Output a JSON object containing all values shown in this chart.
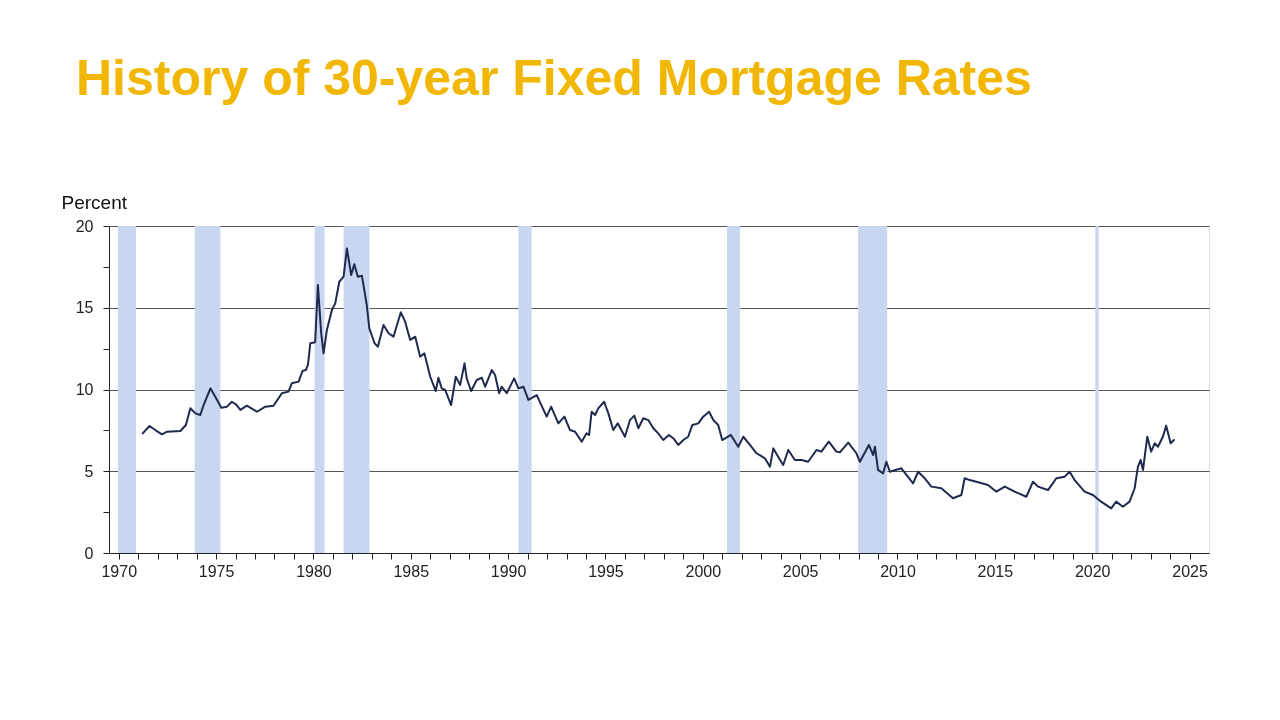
{
  "chart_data": {
    "type": "line",
    "title": "History of 30-year Fixed Mortgage Rates",
    "ylabel": "Percent",
    "xlim": [
      1969.5,
      2026
    ],
    "ylim": [
      0,
      20
    ],
    "xticks": [
      1970,
      {
        "value": 1971,
        "label": null
      },
      {
        "value": 1972,
        "label": null
      },
      {
        "value": 1973,
        "label": null
      },
      {
        "value": 1974,
        "label": null
      },
      1975,
      {
        "value": 1976,
        "label": null
      },
      {
        "value": 1977,
        "label": null
      },
      {
        "value": 1978,
        "label": null
      },
      {
        "value": 1979,
        "label": null
      },
      1980,
      {
        "value": 1981,
        "label": null
      },
      {
        "value": 1982,
        "label": null
      },
      {
        "value": 1983,
        "label": null
      },
      {
        "value": 1984,
        "label": null
      },
      1985,
      {
        "value": 1986,
        "label": null
      },
      {
        "value": 1987,
        "label": null
      },
      {
        "value": 1988,
        "label": null
      },
      {
        "value": 1989,
        "label": null
      },
      1990,
      {
        "value": 1991,
        "label": null
      },
      {
        "value": 1992,
        "label": null
      },
      {
        "value": 1993,
        "label": null
      },
      {
        "value": 1994,
        "label": null
      },
      1995,
      {
        "value": 1996,
        "label": null
      },
      {
        "value": 1997,
        "label": null
      },
      {
        "value": 1998,
        "label": null
      },
      {
        "value": 1999,
        "label": null
      },
      2000,
      {
        "value": 2001,
        "label": null
      },
      {
        "value": 2002,
        "label": null
      },
      {
        "value": 2003,
        "label": null
      },
      {
        "value": 2004,
        "label": null
      },
      2005,
      {
        "value": 2006,
        "label": null
      },
      {
        "value": 2007,
        "label": null
      },
      {
        "value": 2008,
        "label": null
      },
      {
        "value": 2009,
        "label": null
      },
      2010,
      {
        "value": 2011,
        "label": null
      },
      {
        "value": 2012,
        "label": null
      },
      {
        "value": 2013,
        "label": null
      },
      {
        "value": 2014,
        "label": null
      },
      2015,
      {
        "value": 2016,
        "label": null
      },
      {
        "value": 2017,
        "label": null
      },
      {
        "value": 2018,
        "label": null
      },
      {
        "value": 2019,
        "label": null
      },
      2020,
      {
        "value": 2021,
        "label": null
      },
      {
        "value": 2022,
        "label": null
      },
      {
        "value": 2023,
        "label": null
      },
      {
        "value": 2024,
        "label": null
      },
      2025
    ],
    "yticks": [
      0,
      {
        "value": 2.5,
        "label": null
      },
      5,
      {
        "value": 7.5,
        "label": null
      },
      10,
      {
        "value": 12.5,
        "label": null
      },
      15,
      {
        "value": 17.5,
        "label": null
      },
      20
    ],
    "grid": "y",
    "line_style": "solid",
    "marker": "none",
    "bands": [
      {
        "axis": "x",
        "from": 1969.96,
        "to": 1970.89,
        "color": "#c9d6ef"
      },
      {
        "axis": "x",
        "from": 1973.9,
        "to": 1975.22,
        "color": "#c9d6ef"
      },
      {
        "axis": "x",
        "from": 1980.06,
        "to": 1980.57,
        "color": "#c9d6ef"
      },
      {
        "axis": "x",
        "from": 1981.55,
        "to": 1982.88,
        "color": "#c9d6ef"
      },
      {
        "axis": "x",
        "from": 1990.53,
        "to": 1991.21,
        "color": "#c9d6ef"
      },
      {
        "axis": "x",
        "from": 2001.24,
        "to": 2001.91,
        "color": "#c9d6ef"
      },
      {
        "axis": "x",
        "from": 2007.98,
        "to": 2009.47,
        "color": "#c9d6ef"
      },
      {
        "axis": "x",
        "from": 2020.16,
        "to": 2020.33,
        "color": "#c9d6ef"
      }
    ],
    "series": [
      {
        "color": "#1f2a4e",
        "x": [
          1971.23,
          1971.58,
          1971.88,
          1972.22,
          1972.48,
          1973.17,
          1973.45,
          1973.68,
          1973.94,
          1974.19,
          1974.36,
          1974.71,
          1974.96,
          1975.27,
          1975.56,
          1975.81,
          1976.02,
          1976.25,
          1976.58,
          1977.1,
          1977.53,
          1977.95,
          1978.38,
          1978.72,
          1978.89,
          1979.24,
          1979.44,
          1979.61,
          1979.72,
          1979.84,
          1980.09,
          1980.23,
          1980.4,
          1980.52,
          1980.69,
          1980.95,
          1981.12,
          1981.33,
          1981.55,
          1981.72,
          1981.94,
          1982.1,
          1982.28,
          1982.49,
          1982.74,
          1982.87,
          1983.14,
          1983.31,
          1983.6,
          1983.86,
          1984.11,
          1984.49,
          1984.71,
          1984.97,
          1985.23,
          1985.48,
          1985.7,
          1986.0,
          1986.28,
          1986.42,
          1986.59,
          1986.77,
          1987.07,
          1987.31,
          1987.54,
          1987.76,
          1987.88,
          1988.1,
          1988.39,
          1988.65,
          1988.82,
          1989.16,
          1989.33,
          1989.54,
          1989.67,
          1989.93,
          1990.31,
          1990.53,
          1990.79,
          1991.04,
          1991.47,
          1991.98,
          1992.21,
          1992.58,
          1992.89,
          1993.18,
          1993.44,
          1993.78,
          1994.03,
          1994.16,
          1994.29,
          1994.47,
          1994.63,
          1994.93,
          1995.15,
          1995.4,
          1995.63,
          1996.0,
          1996.26,
          1996.48,
          1996.69,
          1996.94,
          1997.2,
          1997.46,
          1997.71,
          1997.97,
          1998.26,
          1998.48,
          1998.74,
          1999.0,
          1999.25,
          1999.46,
          1999.77,
          2000.02,
          2000.32,
          2000.54,
          2000.79,
          2001.0,
          2001.44,
          2001.82,
          2002.08,
          2002.42,
          2002.76,
          2003.19,
          2003.45,
          2003.62,
          2003.87,
          2004.13,
          2004.39,
          2004.73,
          2005.07,
          2005.41,
          2005.84,
          2006.09,
          2006.47,
          2006.86,
          2007.04,
          2007.47,
          2007.89,
          2008.07,
          2008.53,
          2008.75,
          2008.84,
          2009.0,
          2009.26,
          2009.43,
          2009.61,
          2010.2,
          2010.8,
          2011.06,
          2011.4,
          2011.74,
          2012.25,
          2012.85,
          2013.28,
          2013.45,
          2013.71,
          2014.05,
          2014.65,
          2015.08,
          2015.51,
          2016.02,
          2016.62,
          2016.96,
          2017.22,
          2017.73,
          2018.16,
          2018.59,
          2018.84,
          2019.1,
          2019.61,
          2020.04,
          2020.46,
          2020.98,
          2021.23,
          2021.58,
          2021.92,
          2022.18,
          2022.35,
          2022.49,
          2022.61,
          2022.83,
          2023.03,
          2023.21,
          2023.38,
          2023.63,
          2023.8,
          2024.03,
          2024.2
        ],
        "values": [
          7.32,
          7.77,
          7.52,
          7.26,
          7.42,
          7.46,
          7.83,
          8.85,
          8.54,
          8.44,
          9.05,
          10.07,
          9.56,
          8.89,
          8.95,
          9.25,
          9.09,
          8.75,
          9.01,
          8.64,
          8.95,
          9.01,
          9.77,
          9.87,
          10.38,
          10.48,
          11.13,
          11.19,
          11.5,
          12.83,
          12.89,
          16.39,
          13.44,
          12.21,
          13.64,
          14.86,
          15.27,
          16.59,
          16.9,
          18.63,
          17.0,
          17.66,
          16.9,
          16.96,
          15.17,
          13.74,
          12.83,
          12.62,
          13.94,
          13.44,
          13.23,
          14.72,
          14.15,
          13.03,
          13.23,
          12.01,
          12.21,
          10.78,
          9.91,
          10.72,
          10.07,
          9.97,
          9.05,
          10.78,
          10.28,
          11.6,
          10.64,
          9.91,
          10.58,
          10.72,
          10.17,
          11.19,
          10.89,
          9.77,
          10.17,
          9.77,
          10.68,
          10.07,
          10.17,
          9.36,
          9.66,
          8.34,
          8.95,
          7.93,
          8.34,
          7.52,
          7.42,
          6.81,
          7.32,
          7.22,
          8.64,
          8.44,
          8.85,
          9.25,
          8.54,
          7.52,
          7.93,
          7.11,
          8.13,
          8.4,
          7.63,
          8.24,
          8.13,
          7.63,
          7.32,
          6.91,
          7.22,
          7.02,
          6.61,
          6.91,
          7.11,
          7.83,
          7.93,
          8.34,
          8.64,
          8.13,
          7.83,
          6.91,
          7.22,
          6.5,
          7.11,
          6.61,
          6.1,
          5.79,
          5.28,
          6.4,
          5.89,
          5.38,
          6.3,
          5.69,
          5.69,
          5.58,
          6.3,
          6.2,
          6.81,
          6.2,
          6.16,
          6.75,
          6.1,
          5.58,
          6.61,
          5.99,
          6.5,
          5.08,
          4.87,
          5.58,
          4.97,
          5.18,
          4.26,
          4.97,
          4.57,
          4.06,
          3.96,
          3.35,
          3.55,
          4.57,
          4.46,
          4.36,
          4.16,
          3.75,
          4.06,
          3.75,
          3.44,
          4.36,
          4.06,
          3.85,
          4.57,
          4.67,
          4.97,
          4.46,
          3.75,
          3.55,
          3.14,
          2.73,
          3.14,
          2.83,
          3.14,
          3.96,
          5.28,
          5.69,
          5.08,
          7.11,
          6.2,
          6.71,
          6.5,
          7.11,
          7.79,
          6.71,
          6.91
        ]
      }
    ]
  }
}
